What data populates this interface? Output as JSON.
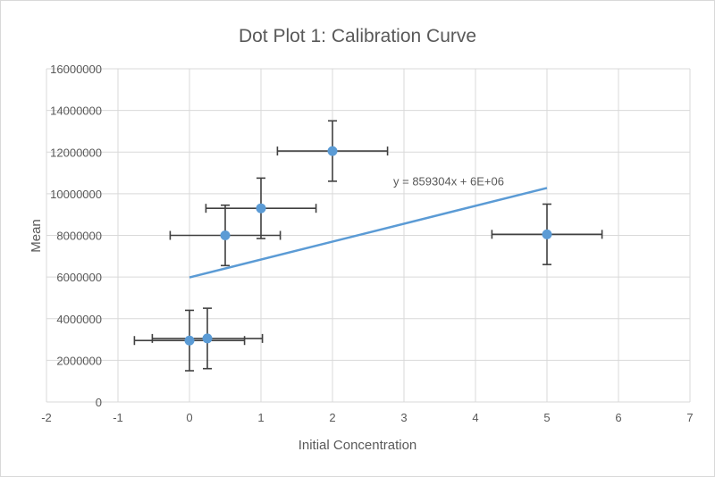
{
  "chart_data": {
    "type": "scatter",
    "title": "Dot Plot 1: Calibration Curve",
    "xlabel": "Initial Concentration",
    "ylabel": "Mean",
    "xlim": [
      -2,
      7
    ],
    "ylim": [
      0,
      16000000
    ],
    "x_ticks": [
      -2,
      -1,
      0,
      1,
      2,
      3,
      4,
      5,
      6,
      7
    ],
    "y_ticks": [
      0,
      2000000,
      4000000,
      6000000,
      8000000,
      10000000,
      12000000,
      14000000,
      16000000
    ],
    "x_tick_labels": [
      "-2",
      "-1",
      "0",
      "1",
      "2",
      "3",
      "4",
      "5",
      "6",
      "7"
    ],
    "y_tick_labels": [
      "0",
      "2000000",
      "4000000",
      "6000000",
      "8000000",
      "10000000",
      "12000000",
      "14000000",
      "16000000"
    ],
    "grid": true,
    "legend": "none",
    "series": [
      {
        "x": [
          0,
          0.25,
          0.5,
          1,
          2,
          5
        ],
        "y": [
          2950000,
          3050000,
          8000000,
          9300000,
          12050000,
          8050000
        ],
        "x_error": 0.77,
        "y_error": 1450000,
        "color": "#5B9BD5"
      }
    ],
    "trendline": {
      "type": "linear",
      "slope": 859304,
      "intercept": 5980000,
      "x_range": [
        0,
        5
      ],
      "equation_label": "y = 859304x + 6E+06",
      "color": "#5B9BD5"
    },
    "error_bar_color": "#404040",
    "grid_color": "#d9d9d9"
  }
}
